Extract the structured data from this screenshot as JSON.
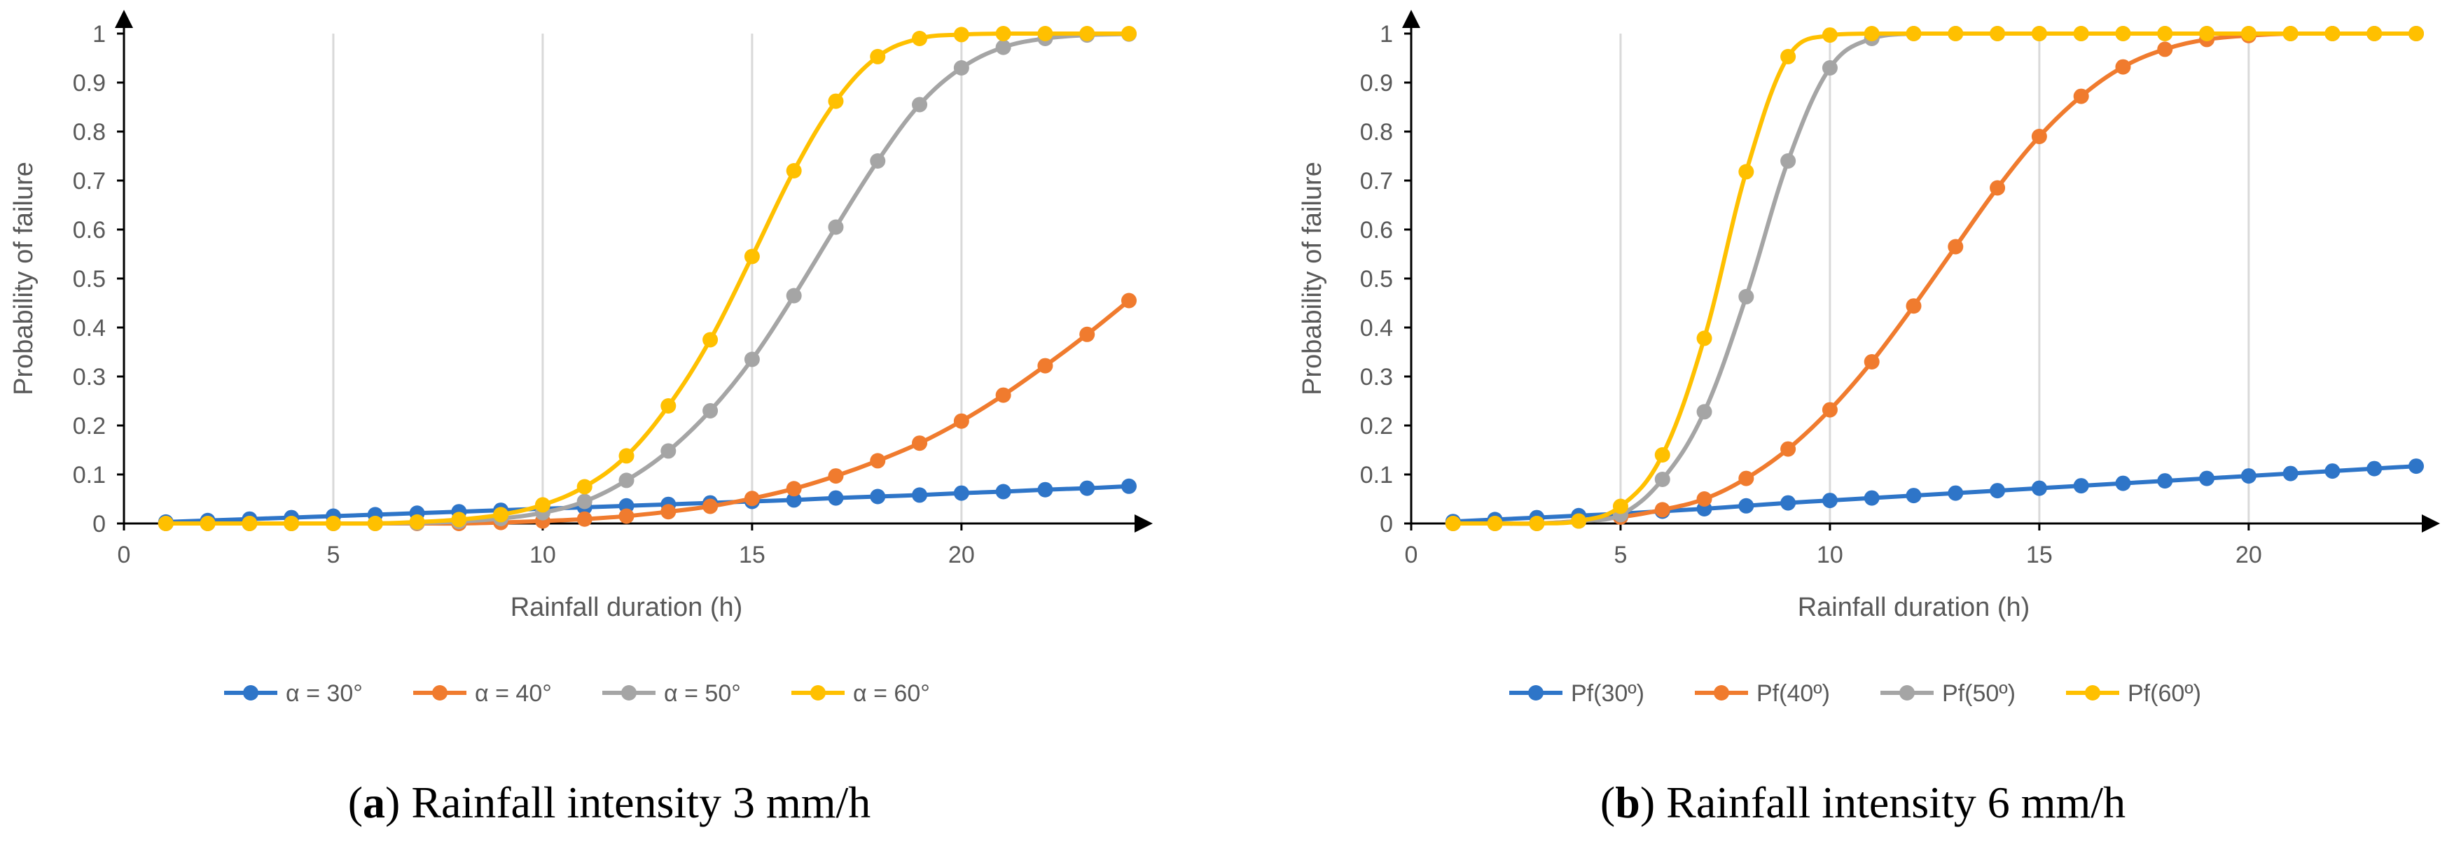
{
  "colors": {
    "blue": "#2E75C8",
    "orange": "#F07B2E",
    "gray": "#A5A5A5",
    "yellow": "#FFC000",
    "grid": "#D9D9D9",
    "axis": "#000000",
    "text": "#595959"
  },
  "chart_data": [
    {
      "type": "line",
      "panel": "a",
      "caption": {
        "letter": "a",
        "text": " Rainfall intensity 3 mm/h"
      },
      "xlabel": "Rainfall duration (h)",
      "ylabel": "Probability of failure",
      "xlim": [
        0,
        24
      ],
      "ylim": [
        0,
        1
      ],
      "xticks": [
        "0",
        "5",
        "10",
        "15",
        "20"
      ],
      "xtick_values": [
        0,
        5,
        10,
        15,
        20
      ],
      "yticks": [
        "0",
        "0.1",
        "0.2",
        "0.3",
        "0.4",
        "0.5",
        "0.6",
        "0.7",
        "0.8",
        "0.9",
        "1"
      ],
      "ytick_values": [
        0,
        0.1,
        0.2,
        0.3,
        0.4,
        0.5,
        0.6,
        0.7,
        0.8,
        0.9,
        1
      ],
      "grid": "vertical",
      "legend_position": "bottom",
      "x": [
        1,
        2,
        3,
        4,
        5,
        6,
        7,
        8,
        9,
        10,
        11,
        12,
        13,
        14,
        15,
        16,
        17,
        18,
        19,
        20,
        21,
        22,
        23,
        24
      ],
      "series": [
        {
          "name": "α = 30°",
          "color": "#2E75C8",
          "values": [
            0.003,
            0.006,
            0.009,
            0.012,
            0.015,
            0.018,
            0.021,
            0.024,
            0.027,
            0.03,
            0.033,
            0.036,
            0.039,
            0.042,
            0.045,
            0.048,
            0.052,
            0.055,
            0.058,
            0.062,
            0.065,
            0.069,
            0.072,
            0.076
          ]
        },
        {
          "name": "α = 40°",
          "color": "#F07B2E",
          "values": [
            0,
            0,
            0,
            0,
            0,
            0,
            0,
            0,
            0.002,
            0.005,
            0.009,
            0.015,
            0.024,
            0.035,
            0.051,
            0.071,
            0.097,
            0.128,
            0.164,
            0.209,
            0.262,
            0.322,
            0.386,
            0.455
          ]
        },
        {
          "name": "α = 50°",
          "color": "#A5A5A5",
          "values": [
            0,
            0,
            0,
            0,
            0,
            0,
            0.001,
            0.004,
            0.01,
            0.022,
            0.045,
            0.088,
            0.148,
            0.23,
            0.335,
            0.465,
            0.605,
            0.74,
            0.855,
            0.93,
            0.972,
            0.99,
            0.997,
            0.999
          ]
        },
        {
          "name": "α = 60°",
          "color": "#FFC000",
          "values": [
            0,
            0,
            0,
            0,
            0,
            0,
            0.003,
            0.008,
            0.018,
            0.038,
            0.075,
            0.138,
            0.24,
            0.375,
            0.545,
            0.72,
            0.862,
            0.953,
            0.99,
            0.998,
            1,
            1,
            1,
            1
          ]
        }
      ]
    },
    {
      "type": "line",
      "panel": "b",
      "caption": {
        "letter": "b",
        "text": " Rainfall intensity 6 mm/h"
      },
      "xlabel": "Rainfall duration (h)",
      "ylabel": "Probability of failure",
      "xlim": [
        0,
        24
      ],
      "ylim": [
        0,
        1
      ],
      "xticks": [
        "0",
        "5",
        "10",
        "15",
        "20"
      ],
      "xtick_values": [
        0,
        5,
        10,
        15,
        20
      ],
      "yticks": [
        "0",
        "0.1",
        "0.2",
        "0.3",
        "0.4",
        "0.5",
        "0.6",
        "0.7",
        "0.8",
        "0.9",
        "1"
      ],
      "ytick_values": [
        0,
        0.1,
        0.2,
        0.3,
        0.4,
        0.5,
        0.6,
        0.7,
        0.8,
        0.9,
        1
      ],
      "grid": "vertical",
      "legend_position": "bottom",
      "x": [
        1,
        2,
        3,
        4,
        5,
        6,
        7,
        8,
        9,
        10,
        11,
        12,
        13,
        14,
        15,
        16,
        17,
        18,
        19,
        20,
        21,
        22,
        23,
        24
      ],
      "series": [
        {
          "name": "Pf(30º)",
          "color": "#2E75C8",
          "values": [
            0.004,
            0.008,
            0.012,
            0.016,
            0.02,
            0.025,
            0.03,
            0.036,
            0.042,
            0.047,
            0.052,
            0.057,
            0.062,
            0.067,
            0.072,
            0.077,
            0.082,
            0.087,
            0.092,
            0.097,
            0.102,
            0.107,
            0.112,
            0.117
          ]
        },
        {
          "name": "Pf(40º)",
          "color": "#F07B2E",
          "values": [
            0,
            0,
            0,
            0.005,
            0.013,
            0.028,
            0.05,
            0.092,
            0.152,
            0.232,
            0.33,
            0.444,
            0.565,
            0.685,
            0.79,
            0.872,
            0.932,
            0.968,
            0.988,
            0.996,
            1,
            1,
            1,
            1
          ]
        },
        {
          "name": "Pf(50º)",
          "color": "#A5A5A5",
          "values": [
            0,
            0,
            0,
            0.005,
            0.018,
            0.09,
            0.228,
            0.463,
            0.74,
            0.93,
            0.99,
            1,
            1,
            1,
            1,
            1,
            1,
            1,
            1,
            1,
            1,
            1,
            1,
            1
          ]
        },
        {
          "name": "Pf(60º)",
          "color": "#FFC000",
          "values": [
            0,
            0,
            0,
            0.005,
            0.035,
            0.14,
            0.378,
            0.718,
            0.953,
            0.997,
            1,
            1,
            1,
            1,
            1,
            1,
            1,
            1,
            1,
            1,
            1,
            1,
            1,
            1
          ]
        }
      ]
    }
  ]
}
